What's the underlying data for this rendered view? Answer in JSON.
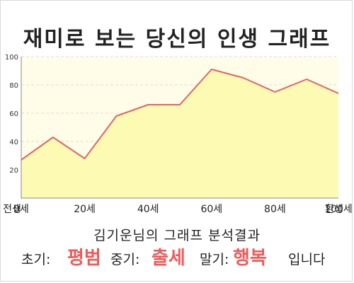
{
  "title": "재미로 보는 당신의 인생 그래프",
  "chart_data": {
    "type": "area",
    "x": [
      0,
      1,
      2,
      3,
      4,
      5,
      6,
      7,
      8,
      9,
      10
    ],
    "values": [
      27,
      43,
      28,
      58,
      66,
      66,
      91,
      85,
      75,
      84,
      74
    ],
    "x_ticks": [
      {
        "label": "전생",
        "pos": -1
      },
      {
        "label": "0세",
        "pos": 0
      },
      {
        "label": "20세",
        "pos": 2
      },
      {
        "label": "40세",
        "pos": 4
      },
      {
        "label": "60세",
        "pos": 6
      },
      {
        "label": "80세",
        "pos": 8
      },
      {
        "label": "100세",
        "pos": 10
      },
      {
        "label": "환생",
        "pos": 11
      }
    ],
    "y_ticks": [
      20,
      40,
      60,
      80,
      100
    ],
    "ylim": [
      0,
      100
    ],
    "grid": true,
    "colors": {
      "line": "#e06666",
      "fill": "#fdfbb3",
      "plot_bg": "#fffde7",
      "grid": "#dcdcdc"
    }
  },
  "result": {
    "subtitle": "김기운님의 그래프 분석결과",
    "early_label": "초기:",
    "early_value": "평범",
    "mid_label": "중기:",
    "mid_value": "출세",
    "late_label": "말기:",
    "late_value": "행복",
    "suffix": "입니다"
  }
}
